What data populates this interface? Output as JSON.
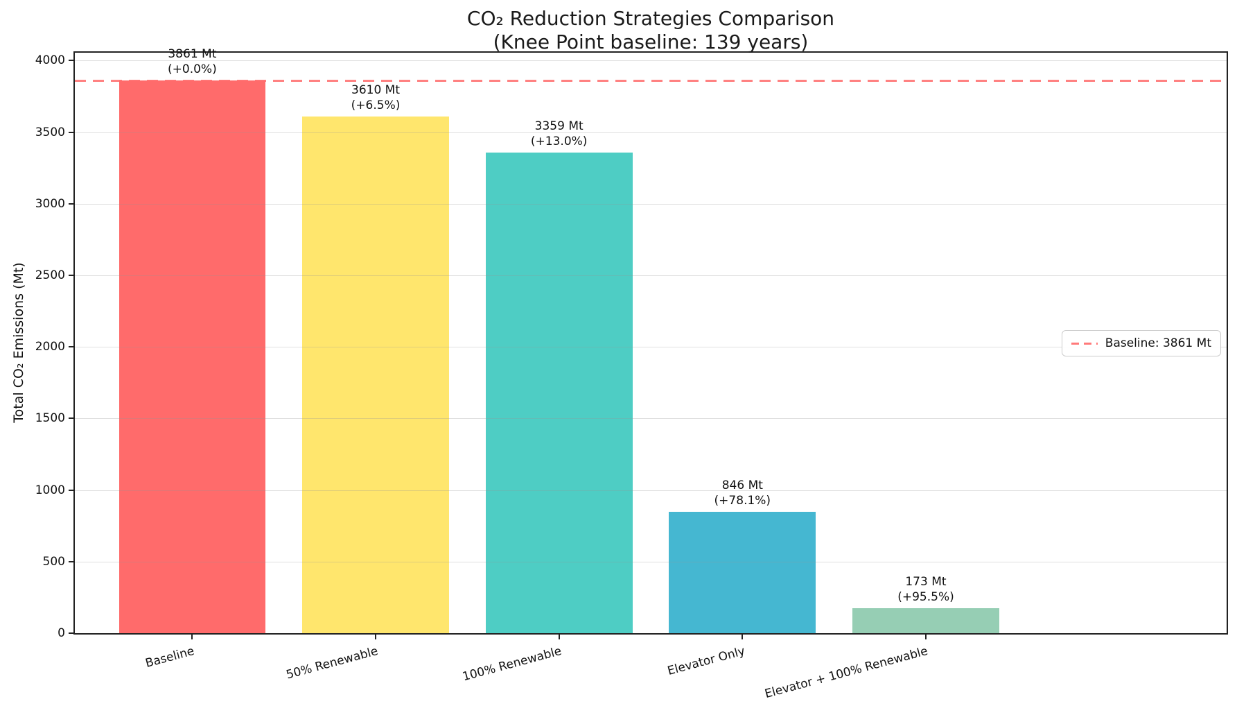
{
  "chart_data": {
    "type": "bar",
    "title": "CO₂ Reduction Strategies Comparison",
    "subtitle": "(Knee Point baseline: 139 years)",
    "ylabel": "Total CO₂ Emissions (Mt)",
    "xlabel": "",
    "categories": [
      "Baseline",
      "50% Renewable",
      "100% Renewable",
      "Elevator Only",
      "Elevator + 100% Renewable"
    ],
    "values": [
      3861,
      3610,
      3359,
      846,
      173
    ],
    "bar_colors": [
      "#FF6B6B",
      "#FFE66D",
      "#4ECDC4",
      "#45B7D1",
      "#96CEB4"
    ],
    "annotations": [
      {
        "value_label": "3861 Mt",
        "pct_label": "(+0.0%)"
      },
      {
        "value_label": "3610 Mt",
        "pct_label": "(+6.5%)"
      },
      {
        "value_label": "3359 Mt",
        "pct_label": "(+13.0%)"
      },
      {
        "value_label": "846 Mt",
        "pct_label": "(+78.1%)"
      },
      {
        "value_label": "173 Mt",
        "pct_label": "(+95.5%)"
      }
    ],
    "baseline": {
      "value": 3861,
      "legend_label": "Baseline: 3861 Mt",
      "color": "#FF6B6B",
      "style": "dashed"
    },
    "yticks": [
      0,
      500,
      1000,
      1500,
      2000,
      2500,
      3000,
      3500,
      4000
    ],
    "ylim": [
      0,
      4055
    ],
    "grid": true,
    "legend_position": "center-right"
  }
}
